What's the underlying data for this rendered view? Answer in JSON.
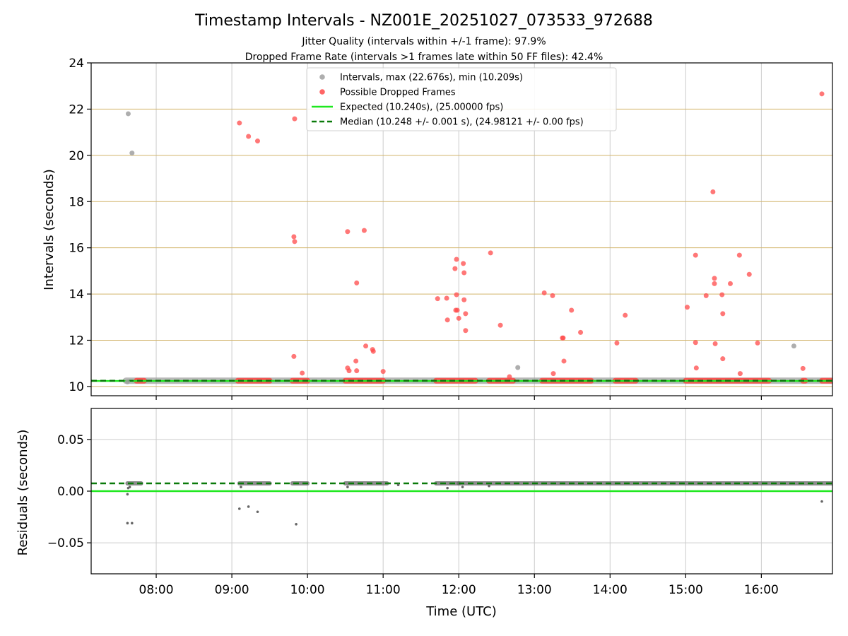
{
  "colors": {
    "gray_points": "#a0a0a0",
    "red_points": "#ff4a4a",
    "expected": "#1ee81e",
    "median": "#0a7a0a",
    "grid_top": "#d2b46a",
    "grid": "#cccccc",
    "residual_points": "#666666",
    "median_band": "#555555"
  },
  "chart_data": [
    {
      "type": "scatter",
      "title": "Timestamp Intervals - NZ001E_20251027_073533_972688",
      "subtitles": [
        "Jitter Quality (intervals within +/-1 frame): 97.9%",
        "Dropped Frame Rate (intervals >1 frames late within 50 FF files): 42.4%"
      ],
      "xlabel": "",
      "ylabel": "Intervals (seconds)",
      "xlim_hours": [
        7.14,
        16.94
      ],
      "ylim": [
        9.6,
        24
      ],
      "yticks": [
        10,
        12,
        14,
        16,
        18,
        20,
        22,
        24
      ],
      "ytick_labels": [
        "10",
        "12",
        "14",
        "16",
        "18",
        "20",
        "22",
        "24"
      ],
      "expected": 10.24,
      "median": 10.248,
      "legend": {
        "position": "top-center",
        "entries": [
          "Intervals, max (22.676s), min (10.209s)",
          "Possible Dropped Frames",
          "Expected (10.240s), (25.00000 fps)",
          "Median (10.248 +/- 0.001 s), (24.98121 +/- 0.00 fps)"
        ]
      },
      "series": [
        {
          "name": "Intervals",
          "x_hours": [
            7.63,
            7.68,
            12.78,
            16.43,
            7.62
          ],
          "y": [
            21.8,
            20.1,
            10.82,
            11.75,
            10.2
          ]
        },
        {
          "name": "Possible Dropped Frames",
          "x_hours": [
            9.1,
            9.22,
            9.34,
            9.83,
            9.82,
            9.83,
            9.82,
            9.93,
            10.53,
            10.53,
            10.55,
            10.65,
            10.64,
            10.65,
            10.75,
            10.77,
            10.86,
            10.87,
            11.0,
            11.72,
            11.84,
            11.85,
            11.95,
            11.97,
            11.97,
            11.98,
            11.96,
            12.0,
            12.06,
            12.07,
            12.07,
            12.09,
            12.09,
            12.42,
            12.55,
            12.67,
            13.13,
            13.24,
            13.25,
            13.37,
            13.38,
            13.39,
            13.49,
            13.61,
            14.09,
            14.2,
            15.02,
            15.13,
            15.13,
            15.14,
            15.27,
            15.36,
            15.38,
            15.38,
            15.39,
            15.48,
            15.49,
            15.49,
            15.59,
            15.71,
            15.72,
            15.84,
            15.95,
            16.55,
            16.8
          ],
          "y": [
            21.4,
            20.82,
            20.62,
            21.58,
            16.48,
            16.27,
            11.3,
            10.58,
            16.7,
            10.8,
            10.68,
            14.48,
            11.1,
            10.68,
            16.75,
            11.75,
            11.6,
            11.52,
            10.65,
            13.8,
            13.82,
            12.88,
            15.1,
            15.5,
            13.97,
            13.3,
            13.3,
            12.95,
            15.32,
            14.92,
            13.75,
            13.15,
            12.42,
            15.78,
            12.65,
            10.42,
            14.05,
            13.93,
            10.56,
            12.1,
            12.1,
            11.1,
            13.3,
            12.34,
            11.88,
            13.08,
            13.43,
            15.68,
            11.9,
            10.8,
            13.93,
            18.42,
            14.68,
            14.45,
            11.85,
            13.97,
            13.15,
            11.2,
            14.45,
            15.68,
            10.56,
            14.85,
            11.88,
            10.78,
            22.66
          ]
        }
      ],
      "dense_bands": [
        {
          "name": "Intervals",
          "y": 10.25,
          "ranges_hours": [
            [
              7.6,
              16.94
            ]
          ]
        },
        {
          "name": "Possible Dropped Frames",
          "y": 10.25,
          "ranges_hours": [
            [
              7.74,
              7.84
            ],
            [
              9.08,
              9.5
            ],
            [
              9.8,
              10.0
            ],
            [
              10.5,
              11.0
            ],
            [
              11.7,
              12.22
            ],
            [
              12.4,
              12.72
            ],
            [
              13.1,
              13.75
            ],
            [
              14.07,
              14.34
            ],
            [
              15.0,
              16.1
            ],
            [
              16.55,
              16.58
            ],
            [
              16.8,
              16.94
            ]
          ]
        }
      ]
    },
    {
      "type": "scatter",
      "title": "",
      "xlabel": "Time (UTC)",
      "ylabel": "Residuals (seconds)",
      "xlim_hours": [
        7.14,
        16.94
      ],
      "ylim": [
        -0.08,
        0.08
      ],
      "yticks": [
        -0.05,
        0.0,
        0.05
      ],
      "ytick_labels": [
        "−0.05",
        "0.00",
        "0.05"
      ],
      "xticks_hours": [
        8,
        9,
        10,
        11,
        12,
        13,
        14,
        15,
        16
      ],
      "xtick_labels": [
        "08:00",
        "09:00",
        "10:00",
        "11:00",
        "12:00",
        "13:00",
        "14:00",
        "15:00",
        "16:00"
      ],
      "expected": 0.0,
      "median": 0.0075,
      "series": [
        {
          "name": "Residuals",
          "x_hours": [
            7.62,
            7.68,
            7.62,
            7.63,
            9.1,
            9.22,
            9.34,
            9.85,
            7.65,
            9.12,
            10.53,
            11.2,
            11.85,
            16.8,
            12.05,
            12.4
          ],
          "y": [
            -0.031,
            -0.031,
            -0.003,
            0.003,
            -0.017,
            -0.015,
            -0.02,
            -0.032,
            0.004,
            0.004,
            0.004,
            0.006,
            0.003,
            -0.01,
            0.004,
            0.005
          ]
        }
      ],
      "dense_bands": [
        {
          "name": "Residuals",
          "y": 0.0075,
          "ranges_hours": [
            [
              7.62,
              7.8
            ],
            [
              9.1,
              9.5
            ],
            [
              9.8,
              10.0
            ],
            [
              10.5,
              11.05
            ],
            [
              11.7,
              12.0
            ],
            [
              12.0,
              16.94
            ]
          ]
        }
      ]
    }
  ]
}
